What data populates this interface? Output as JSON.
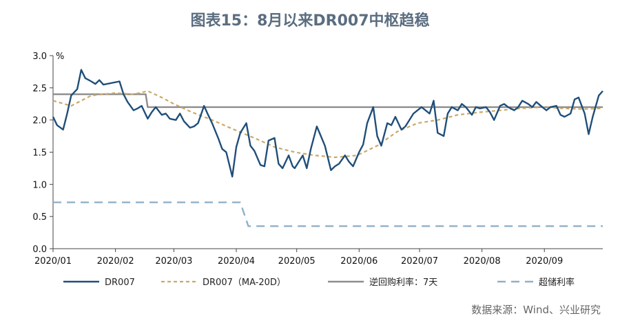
{
  "title": "图表15：8月以来DR007中枢趋稳",
  "source": "数据来源：Wind、兴业研究",
  "chart_data": {
    "type": "line",
    "ylabel_unit": "%",
    "ylim": [
      0,
      3
    ],
    "yticks": [
      "0.0",
      "0.5",
      "1.0",
      "1.5",
      "2.0",
      "2.5",
      "3.0"
    ],
    "xticks": [
      "2020/01",
      "2020/02",
      "2020/03",
      "2020/04",
      "2020/05",
      "2020/06",
      "2020/07",
      "2020/08",
      "2020/09"
    ],
    "x_range": [
      "2020-01-01",
      "2020-09-30"
    ],
    "series": [
      {
        "name": "DR007",
        "color": "#1f4e79",
        "style": "solid",
        "points": [
          [
            "2020-01-01",
            2.05
          ],
          [
            "2020-01-03",
            1.92
          ],
          [
            "2020-01-06",
            1.85
          ],
          [
            "2020-01-08",
            2.1
          ],
          [
            "2020-01-10",
            2.38
          ],
          [
            "2020-01-13",
            2.48
          ],
          [
            "2020-01-15",
            2.78
          ],
          [
            "2020-01-17",
            2.65
          ],
          [
            "2020-01-20",
            2.6
          ],
          [
            "2020-01-22",
            2.56
          ],
          [
            "2020-01-24",
            2.62
          ],
          [
            "2020-01-26",
            2.55
          ],
          [
            "2020-02-03",
            2.6
          ],
          [
            "2020-02-05",
            2.4
          ],
          [
            "2020-02-07",
            2.28
          ],
          [
            "2020-02-10",
            2.15
          ],
          [
            "2020-02-12",
            2.18
          ],
          [
            "2020-02-14",
            2.22
          ],
          [
            "2020-02-17",
            2.02
          ],
          [
            "2020-02-19",
            2.12
          ],
          [
            "2020-02-21",
            2.2
          ],
          [
            "2020-02-24",
            2.08
          ],
          [
            "2020-02-26",
            2.1
          ],
          [
            "2020-02-28",
            2.02
          ],
          [
            "2020-03-02",
            2.0
          ],
          [
            "2020-03-04",
            2.1
          ],
          [
            "2020-03-06",
            1.98
          ],
          [
            "2020-03-09",
            1.88
          ],
          [
            "2020-03-11",
            1.9
          ],
          [
            "2020-03-13",
            1.95
          ],
          [
            "2020-03-16",
            2.22
          ],
          [
            "2020-03-18",
            2.08
          ],
          [
            "2020-03-20",
            1.95
          ],
          [
            "2020-03-23",
            1.72
          ],
          [
            "2020-03-25",
            1.55
          ],
          [
            "2020-03-27",
            1.5
          ],
          [
            "2020-03-30",
            1.12
          ],
          [
            "2020-04-01",
            1.58
          ],
          [
            "2020-04-03",
            1.8
          ],
          [
            "2020-04-06",
            1.95
          ],
          [
            "2020-04-08",
            1.6
          ],
          [
            "2020-04-10",
            1.52
          ],
          [
            "2020-04-13",
            1.3
          ],
          [
            "2020-04-15",
            1.28
          ],
          [
            "2020-04-17",
            1.68
          ],
          [
            "2020-04-20",
            1.72
          ],
          [
            "2020-04-22",
            1.32
          ],
          [
            "2020-04-24",
            1.25
          ],
          [
            "2020-04-27",
            1.45
          ],
          [
            "2020-04-29",
            1.28
          ],
          [
            "2020-04-30",
            1.25
          ],
          [
            "2020-05-04",
            1.45
          ],
          [
            "2020-05-06",
            1.25
          ],
          [
            "2020-05-08",
            1.55
          ],
          [
            "2020-05-11",
            1.9
          ],
          [
            "2020-05-13",
            1.75
          ],
          [
            "2020-05-15",
            1.6
          ],
          [
            "2020-05-18",
            1.22
          ],
          [
            "2020-05-20",
            1.28
          ],
          [
            "2020-05-22",
            1.32
          ],
          [
            "2020-05-25",
            1.45
          ],
          [
            "2020-05-27",
            1.35
          ],
          [
            "2020-05-29",
            1.28
          ],
          [
            "2020-06-01",
            1.5
          ],
          [
            "2020-06-03",
            1.62
          ],
          [
            "2020-06-05",
            1.95
          ],
          [
            "2020-06-08",
            2.2
          ],
          [
            "2020-06-10",
            1.75
          ],
          [
            "2020-06-12",
            1.6
          ],
          [
            "2020-06-15",
            1.95
          ],
          [
            "2020-06-17",
            1.92
          ],
          [
            "2020-06-19",
            2.05
          ],
          [
            "2020-06-22",
            1.85
          ],
          [
            "2020-06-24",
            1.9
          ],
          [
            "2020-06-28",
            2.1
          ],
          [
            "2020-06-30",
            2.15
          ],
          [
            "2020-07-02",
            2.2
          ],
          [
            "2020-07-06",
            2.1
          ],
          [
            "2020-07-08",
            2.3
          ],
          [
            "2020-07-10",
            1.8
          ],
          [
            "2020-07-13",
            1.75
          ],
          [
            "2020-07-15",
            2.1
          ],
          [
            "2020-07-17",
            2.2
          ],
          [
            "2020-07-20",
            2.15
          ],
          [
            "2020-07-22",
            2.25
          ],
          [
            "2020-07-24",
            2.2
          ],
          [
            "2020-07-27",
            2.08
          ],
          [
            "2020-07-29",
            2.2
          ],
          [
            "2020-07-31",
            2.18
          ],
          [
            "2020-08-03",
            2.2
          ],
          [
            "2020-08-05",
            2.12
          ],
          [
            "2020-08-07",
            2.0
          ],
          [
            "2020-08-10",
            2.22
          ],
          [
            "2020-08-12",
            2.25
          ],
          [
            "2020-08-14",
            2.2
          ],
          [
            "2020-08-17",
            2.15
          ],
          [
            "2020-08-19",
            2.2
          ],
          [
            "2020-08-21",
            2.3
          ],
          [
            "2020-08-24",
            2.25
          ],
          [
            "2020-08-26",
            2.2
          ],
          [
            "2020-08-28",
            2.28
          ],
          [
            "2020-08-31",
            2.2
          ],
          [
            "2020-09-02",
            2.15
          ],
          [
            "2020-09-04",
            2.2
          ],
          [
            "2020-09-07",
            2.22
          ],
          [
            "2020-09-09",
            2.08
          ],
          [
            "2020-09-11",
            2.05
          ],
          [
            "2020-09-14",
            2.1
          ],
          [
            "2020-09-16",
            2.32
          ],
          [
            "2020-09-18",
            2.35
          ],
          [
            "2020-09-21",
            2.1
          ],
          [
            "2020-09-23",
            1.78
          ],
          [
            "2020-09-25",
            2.05
          ],
          [
            "2020-09-28",
            2.38
          ],
          [
            "2020-09-30",
            2.45
          ]
        ]
      },
      {
        "name": "DR007（MA-20D）",
        "color": "#c9a86a",
        "style": "dashed",
        "points": [
          [
            "2020-01-01",
            2.3
          ],
          [
            "2020-01-10",
            2.22
          ],
          [
            "2020-01-20",
            2.38
          ],
          [
            "2020-02-01",
            2.42
          ],
          [
            "2020-02-10",
            2.4
          ],
          [
            "2020-02-17",
            2.45
          ],
          [
            "2020-02-24",
            2.35
          ],
          [
            "2020-03-01",
            2.25
          ],
          [
            "2020-03-10",
            2.12
          ],
          [
            "2020-03-20",
            2.0
          ],
          [
            "2020-03-31",
            1.85
          ],
          [
            "2020-04-10",
            1.72
          ],
          [
            "2020-04-20",
            1.58
          ],
          [
            "2020-04-30",
            1.5
          ],
          [
            "2020-05-10",
            1.45
          ],
          [
            "2020-05-20",
            1.42
          ],
          [
            "2020-05-31",
            1.45
          ],
          [
            "2020-06-10",
            1.6
          ],
          [
            "2020-06-20",
            1.82
          ],
          [
            "2020-06-30",
            1.95
          ],
          [
            "2020-07-10",
            2.0
          ],
          [
            "2020-07-20",
            2.08
          ],
          [
            "2020-07-31",
            2.12
          ],
          [
            "2020-08-10",
            2.15
          ],
          [
            "2020-08-20",
            2.18
          ],
          [
            "2020-08-31",
            2.2
          ],
          [
            "2020-09-10",
            2.18
          ],
          [
            "2020-09-20",
            2.17
          ],
          [
            "2020-09-30",
            2.18
          ]
        ]
      },
      {
        "name": "逆回购利率：7天",
        "color": "#8c8c8c",
        "style": "solid",
        "points": [
          [
            "2020-01-01",
            2.4
          ],
          [
            "2020-02-16",
            2.4
          ],
          [
            "2020-02-17",
            2.2
          ],
          [
            "2020-09-30",
            2.2
          ]
        ]
      },
      {
        "name": "超储利率",
        "color": "#8fb0c8",
        "style": "dashed",
        "points": [
          [
            "2020-01-01",
            0.72
          ],
          [
            "2020-04-03",
            0.72
          ],
          [
            "2020-04-07",
            0.35
          ],
          [
            "2020-09-30",
            0.35
          ]
        ]
      }
    ]
  }
}
